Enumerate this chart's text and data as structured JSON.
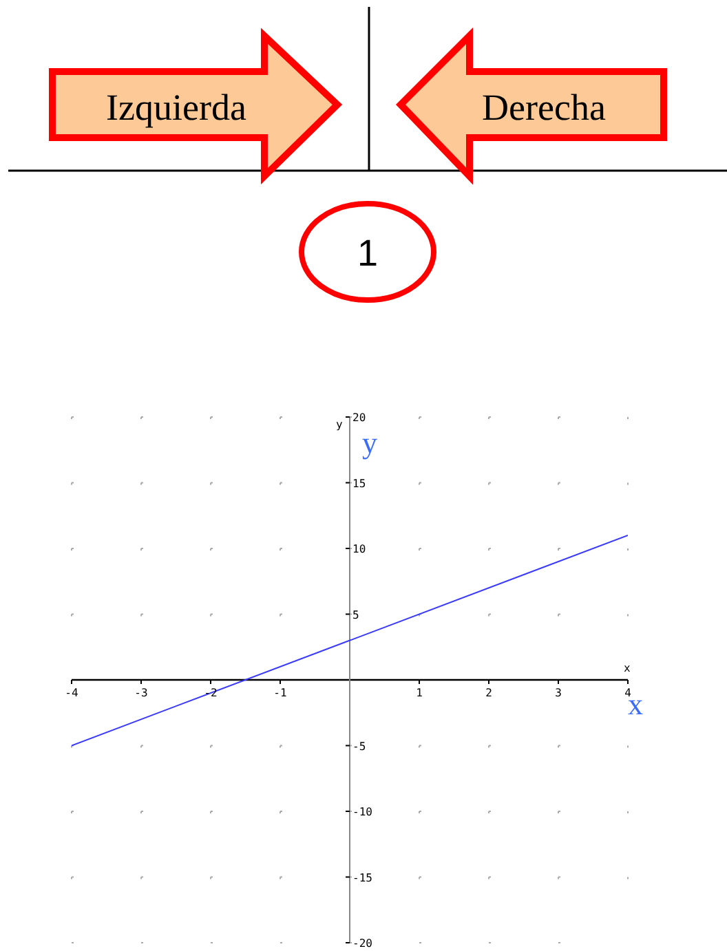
{
  "chart_data": {
    "type": "line",
    "xlabel": "x",
    "ylabel": "y",
    "annotations": [
      "Izquierda",
      "Derecha",
      "1",
      "y",
      "x"
    ],
    "series": [
      {
        "color": "#3a3aff",
        "x": [
          -4,
          4
        ],
        "values": [
          -5,
          11
        ]
      }
    ],
    "xlim": [
      -4,
      4
    ],
    "xticks": [
      -4,
      -3,
      -2,
      -1,
      1,
      2,
      3,
      4
    ],
    "ylim": [
      -20,
      20
    ],
    "yticks": [
      -20,
      -15,
      -10,
      -5,
      5,
      10,
      15,
      20
    ],
    "grid": true,
    "marker": "none",
    "line_style": "solid"
  }
}
